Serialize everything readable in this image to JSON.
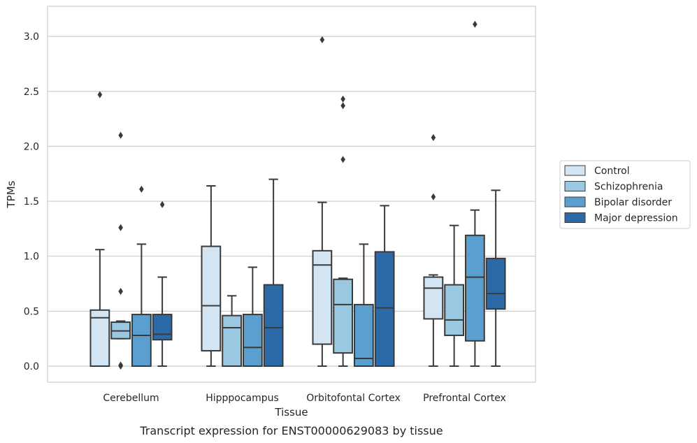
{
  "caption": "Transcript expression for ENST00000629083 by tissue",
  "chart_data": {
    "type": "box",
    "title": "",
    "xlabel": "Tissue",
    "ylabel": "TPMs",
    "ylim": [
      -0.15,
      3.27
    ],
    "yticks": [
      "0.0",
      "0.5",
      "1.0",
      "1.5",
      "2.0",
      "2.5",
      "3.0"
    ],
    "grid": "horizontal",
    "legend_position": "right",
    "categories": [
      "Cerebellum",
      "Hipppocampus",
      "Orbitofontal Cortex",
      "Prefrontal Cortex"
    ],
    "series": [
      {
        "name": "Control",
        "color": "#d3e4f3",
        "boxes": [
          {
            "whislo": 0.0,
            "q1": 0.0,
            "med": 0.44,
            "q3": 0.51,
            "whishi": 1.06,
            "fliers": [
              2.47
            ]
          },
          {
            "whislo": 0.0,
            "q1": 0.14,
            "med": 0.55,
            "q3": 1.09,
            "whishi": 1.64,
            "fliers": []
          },
          {
            "whislo": 0.0,
            "q1": 0.2,
            "med": 0.92,
            "q3": 1.05,
            "whishi": 1.49,
            "fliers": [
              2.97
            ]
          },
          {
            "whislo": 0.0,
            "q1": 0.43,
            "med": 0.71,
            "q3": 0.81,
            "whishi": 0.83,
            "fliers": [
              2.08,
              1.54
            ]
          }
        ]
      },
      {
        "name": "Schizophrenia",
        "color": "#9ac8e0",
        "boxes": [
          {
            "whislo": 0.25,
            "q1": 0.25,
            "med": 0.32,
            "q3": 0.4,
            "whishi": 0.41,
            "fliers": [
              2.1,
              1.26,
              0.68,
              0.01,
              0.0
            ]
          },
          {
            "whislo": 0.0,
            "q1": 0.0,
            "med": 0.35,
            "q3": 0.46,
            "whishi": 0.64,
            "fliers": []
          },
          {
            "whislo": 0.0,
            "q1": 0.12,
            "med": 0.56,
            "q3": 0.79,
            "whishi": 0.8,
            "fliers": [
              2.43,
              2.37,
              1.88
            ]
          },
          {
            "whislo": 0.0,
            "q1": 0.28,
            "med": 0.42,
            "q3": 0.74,
            "whishi": 1.28,
            "fliers": []
          }
        ]
      },
      {
        "name": "Bipolar disorder",
        "color": "#5a9fcd",
        "boxes": [
          {
            "whislo": 0.0,
            "q1": 0.0,
            "med": 0.28,
            "q3": 0.47,
            "whishi": 1.11,
            "fliers": [
              1.61
            ]
          },
          {
            "whislo": 0.0,
            "q1": 0.0,
            "med": 0.17,
            "q3": 0.47,
            "whishi": 0.9,
            "fliers": []
          },
          {
            "whislo": 0.0,
            "q1": 0.0,
            "med": 0.07,
            "q3": 0.56,
            "whishi": 1.11,
            "fliers": []
          },
          {
            "whislo": 0.0,
            "q1": 0.23,
            "med": 0.81,
            "q3": 1.19,
            "whishi": 1.42,
            "fliers": [
              3.11
            ]
          }
        ]
      },
      {
        "name": "Major depression",
        "color": "#2c6aa7",
        "boxes": [
          {
            "whislo": 0.0,
            "q1": 0.24,
            "med": 0.29,
            "q3": 0.47,
            "whishi": 0.81,
            "fliers": [
              1.47
            ]
          },
          {
            "whislo": 0.0,
            "q1": 0.0,
            "med": 0.35,
            "q3": 0.74,
            "whishi": 1.7,
            "fliers": []
          },
          {
            "whislo": 0.0,
            "q1": 0.0,
            "med": 0.53,
            "q3": 1.04,
            "whishi": 1.46,
            "fliers": []
          },
          {
            "whislo": 0.0,
            "q1": 0.52,
            "med": 0.66,
            "q3": 0.98,
            "whishi": 1.6,
            "fliers": []
          }
        ]
      }
    ]
  }
}
